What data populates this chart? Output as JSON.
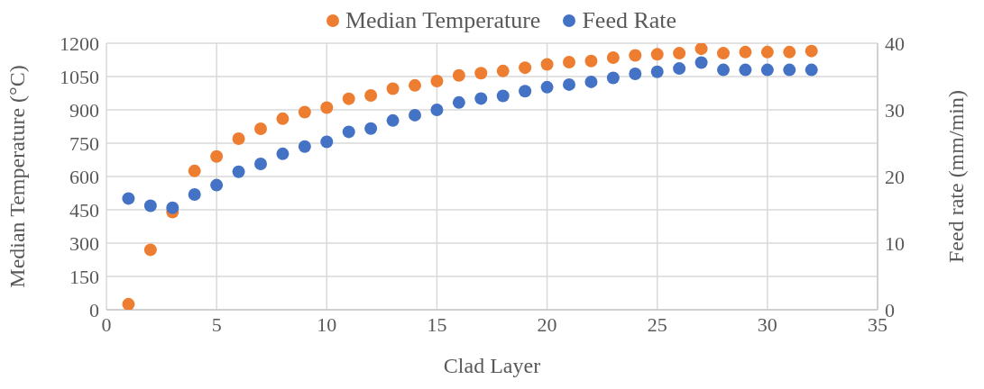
{
  "chart_data": {
    "type": "scatter",
    "xlabel": "Clad Layer",
    "ylabel": "Median Temperature (°C)",
    "y2label": "Feed rate (mm/min)",
    "x": [
      1,
      2,
      3,
      4,
      5,
      6,
      7,
      8,
      9,
      10,
      11,
      12,
      13,
      14,
      15,
      16,
      17,
      18,
      19,
      20,
      21,
      22,
      23,
      24,
      25,
      26,
      27,
      28,
      29,
      30,
      31,
      32
    ],
    "series": [
      {
        "name": "Median Temperature",
        "color": "#ed7d31",
        "values": [
          25,
          270,
          440,
          625,
          690,
          770,
          815,
          860,
          890,
          910,
          950,
          965,
          995,
          1010,
          1030,
          1055,
          1065,
          1075,
          1090,
          1105,
          1115,
          1120,
          1135,
          1145,
          1150,
          1155,
          1175,
          1155,
          1160,
          1160,
          1160,
          1165
        ]
      },
      {
        "name": "Feed Rate",
        "color": "#4472c4",
        "axis": "y2",
        "values": [
          16.7,
          15.6,
          15.3,
          17.3,
          18.7,
          20.7,
          21.9,
          23.4,
          24.5,
          25.2,
          26.7,
          27.2,
          28.4,
          29.2,
          30,
          31.1,
          31.7,
          32.1,
          32.8,
          33.4,
          33.8,
          34.2,
          34.8,
          35.4,
          35.7,
          36.2,
          37.1,
          36,
          36,
          36,
          36,
          36
        ]
      }
    ],
    "xlim": [
      0,
      35
    ],
    "xticks": [
      0,
      5,
      10,
      15,
      20,
      25,
      30,
      35
    ],
    "ylim": [
      0,
      1200
    ],
    "yticks": [
      0,
      150,
      300,
      450,
      600,
      750,
      900,
      1050,
      1200
    ],
    "y2lim": [
      0,
      40
    ],
    "y2ticks": [
      0,
      10,
      20,
      30,
      40
    ],
    "grid": true,
    "legend": "top",
    "marker": "circle"
  }
}
